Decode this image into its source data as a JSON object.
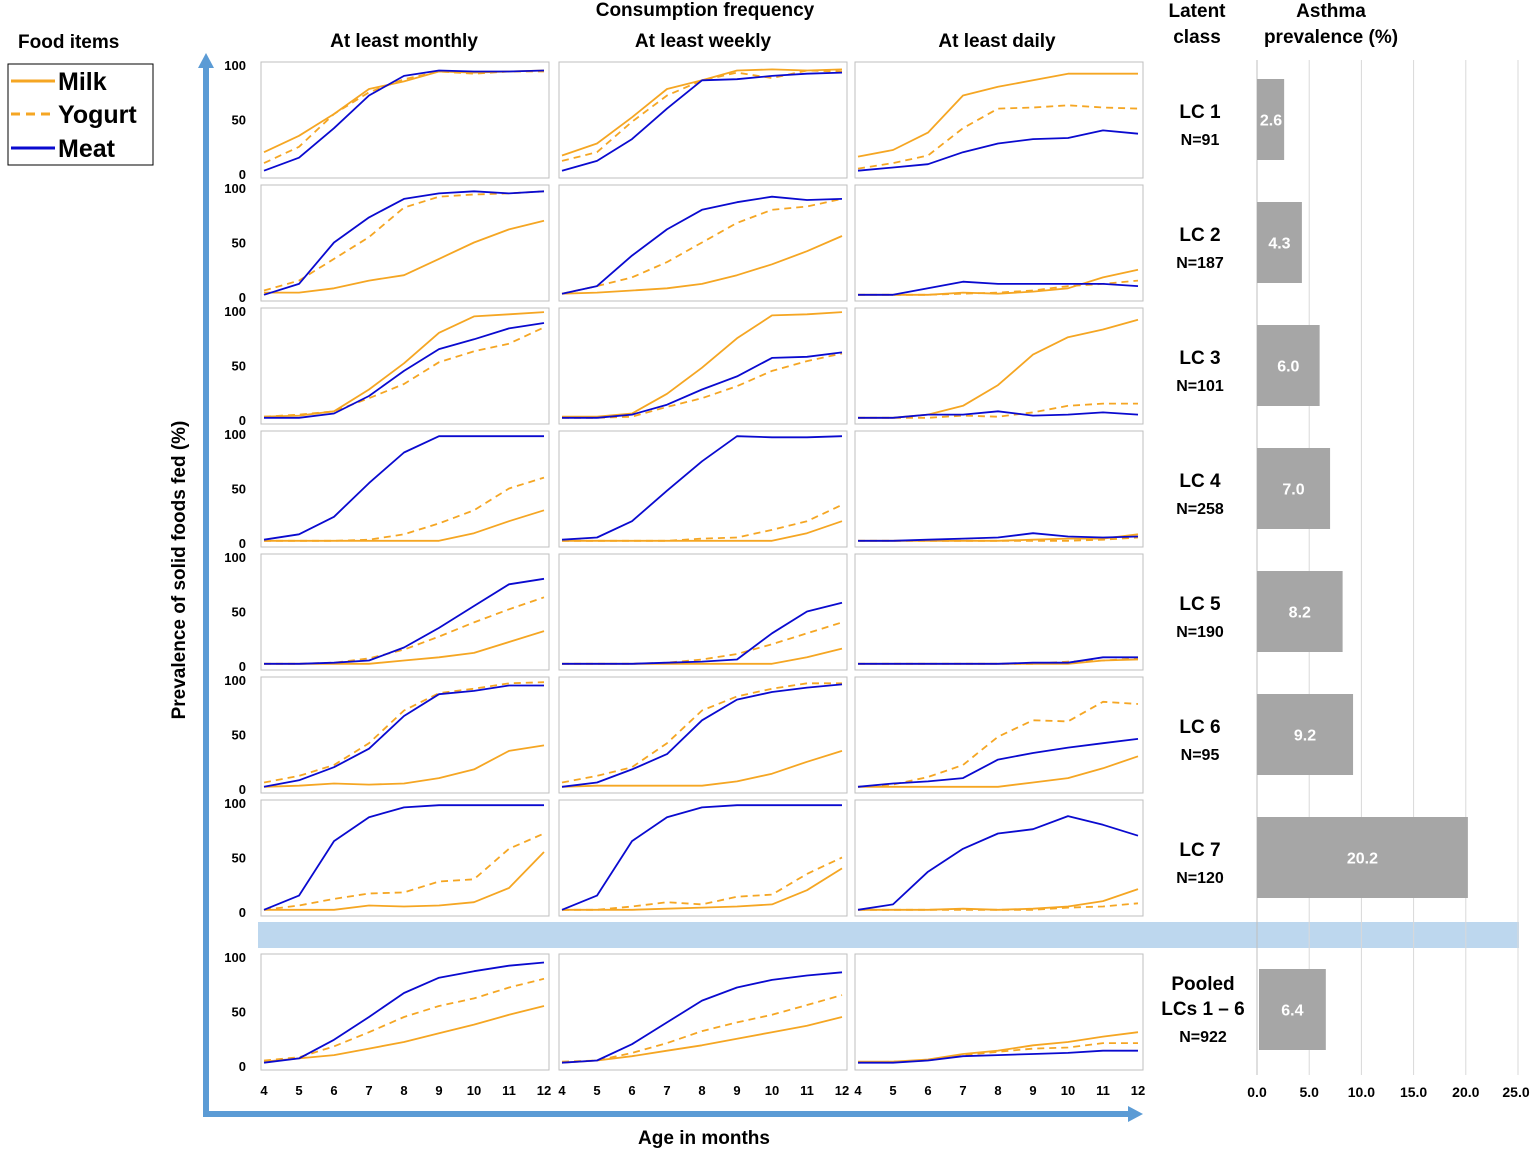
{
  "labels": {
    "food_items_title": "Food items",
    "consumption_frequency": "Consumption frequency",
    "latent_class_line1": "Latent",
    "latent_class_line2": "class",
    "asthma_line1": "Asthma",
    "asthma_line2": "prevalence (%)",
    "y_axis": "Prevalence of solid foods fed (%)",
    "x_axis": "Age in months"
  },
  "legend": [
    {
      "name": "Milk",
      "style": "solid",
      "color": "#F5A623"
    },
    {
      "name": "Yogurt",
      "style": "dashed",
      "color": "#F5A623"
    },
    {
      "name": "Meat",
      "style": "solid",
      "color": "#0A0ACF"
    }
  ],
  "frequencies": [
    "At least monthly",
    "At least weekly",
    "At least daily"
  ],
  "ages": [
    4,
    5,
    6,
    7,
    8,
    9,
    10,
    11,
    12
  ],
  "y_ticks": [
    0,
    50,
    100
  ],
  "asthma_axis": {
    "ticks": [
      "0.0",
      "5.0",
      "10.0",
      "15.0",
      "20.0",
      "25.0"
    ],
    "max": 25
  },
  "colors": {
    "milk": "#F5A623",
    "yogurt": "#F5A623",
    "meat": "#0A0ACF",
    "bar": "#A6A6A6",
    "arrow": "#5B9BD5",
    "separator": "#BDD7EE"
  },
  "chart_data": {
    "type": "line",
    "x": [
      4,
      5,
      6,
      7,
      8,
      9,
      10,
      11,
      12
    ],
    "ylim": [
      0,
      100
    ],
    "xlabel": "Age in months",
    "ylabel": "Prevalence of solid foods fed (%)",
    "classes": [
      {
        "name": "LC 1",
        "n": "N=91",
        "asthma": 2.6,
        "asthma_label": "2.6",
        "panels": [
          {
            "milk": [
              20,
              35,
              55,
              78,
              85,
              94,
              93,
              94,
              95
            ],
            "yogurt": [
              10,
              25,
              55,
              75,
              87,
              94,
              92,
              94,
              94
            ],
            "meat": [
              3,
              15,
              42,
              72,
              90,
              95,
              94,
              94,
              95
            ]
          },
          {
            "milk": [
              17,
              28,
              52,
              78,
              86,
              95,
              96,
              95,
              96
            ],
            "yogurt": [
              12,
              20,
              48,
              72,
              86,
              93,
              88,
              95,
              94
            ],
            "meat": [
              3,
              12,
              32,
              60,
              86,
              87,
              90,
              92,
              93
            ]
          },
          {
            "milk": [
              16,
              22,
              38,
              72,
              80,
              86,
              92,
              92,
              92
            ],
            "yogurt": [
              5,
              10,
              17,
              42,
              60,
              61,
              63,
              61,
              60
            ],
            "meat": [
              3,
              6,
              9,
              20,
              28,
              32,
              33,
              40,
              37
            ]
          }
        ]
      },
      {
        "name": "LC 2",
        "n": "N=187",
        "asthma": 4.3,
        "asthma_label": "4.3",
        "panels": [
          {
            "milk": [
              4,
              4,
              8,
              15,
              20,
              35,
              50,
              62,
              70
            ],
            "yogurt": [
              6,
              15,
              35,
              55,
              82,
              92,
              94,
              95,
              97
            ],
            "meat": [
              2,
              12,
              50,
              73,
              90,
              95,
              97,
              95,
              97
            ]
          },
          {
            "milk": [
              3,
              4,
              6,
              8,
              12,
              20,
              30,
              42,
              56
            ],
            "yogurt": [
              3,
              10,
              18,
              32,
              50,
              68,
              80,
              83,
              90
            ],
            "meat": [
              3,
              10,
              38,
              62,
              80,
              87,
              92,
              89,
              90
            ]
          },
          {
            "milk": [
              2,
              2,
              2,
              4,
              3,
              5,
              8,
              18,
              25
            ],
            "yogurt": [
              2,
              2,
              2,
              3,
              4,
              6,
              10,
              12,
              15
            ],
            "meat": [
              2,
              2,
              8,
              14,
              12,
              12,
              12,
              12,
              10
            ]
          }
        ]
      },
      {
        "name": "LC 3",
        "n": "N=101",
        "asthma": 6.0,
        "asthma_label": "6.0",
        "panels": [
          {
            "milk": [
              3,
              4,
              8,
              28,
              52,
              80,
              95,
              97,
              99
            ],
            "yogurt": [
              3,
              5,
              8,
              20,
              33,
              53,
              63,
              70,
              85
            ],
            "meat": [
              2,
              2,
              6,
              22,
              45,
              65,
              74,
              84,
              89
            ]
          },
          {
            "milk": [
              3,
              3,
              6,
              24,
              48,
              75,
              96,
              97,
              99
            ],
            "yogurt": [
              2,
              2,
              3,
              12,
              20,
              31,
              45,
              54,
              61
            ],
            "meat": [
              2,
              2,
              5,
              14,
              28,
              40,
              57,
              58,
              62
            ]
          },
          {
            "milk": [
              2,
              2,
              5,
              13,
              32,
              60,
              76,
              83,
              92
            ],
            "yogurt": [
              2,
              2,
              2,
              4,
              3,
              7,
              13,
              15,
              15
            ],
            "meat": [
              2,
              2,
              5,
              5,
              8,
              4,
              5,
              7,
              5
            ]
          }
        ]
      },
      {
        "name": "LC 4",
        "n": "N=258",
        "asthma": 7.0,
        "asthma_label": "7.0",
        "panels": [
          {
            "milk": [
              2,
              2,
              2,
              2,
              2,
              2,
              9,
              20,
              30
            ],
            "yogurt": [
              2,
              2,
              2,
              3,
              8,
              18,
              30,
              50,
              60
            ],
            "meat": [
              3,
              8,
              24,
              55,
              83,
              98,
              98,
              98,
              98
            ]
          },
          {
            "milk": [
              2,
              2,
              2,
              2,
              2,
              2,
              2,
              9,
              20
            ],
            "yogurt": [
              2,
              2,
              2,
              2,
              4,
              5,
              12,
              20,
              35
            ],
            "meat": [
              3,
              5,
              20,
              48,
              75,
              98,
              97,
              97,
              98
            ]
          },
          {
            "milk": [
              2,
              2,
              2,
              2,
              2,
              3,
              4,
              4,
              8
            ],
            "yogurt": [
              2,
              2,
              2,
              2,
              2,
              2,
              2,
              3,
              5
            ],
            "meat": [
              2,
              2,
              3,
              4,
              5,
              9,
              6,
              5,
              6
            ]
          }
        ]
      },
      {
        "name": "LC 5",
        "n": "N=190",
        "asthma": 8.2,
        "asthma_label": "8.2",
        "panels": [
          {
            "milk": [
              2,
              2,
              2,
              2,
              5,
              8,
              12,
              22,
              32
            ],
            "yogurt": [
              2,
              2,
              3,
              7,
              15,
              27,
              40,
              52,
              63
            ],
            "meat": [
              2,
              2,
              3,
              5,
              17,
              35,
              55,
              75,
              80
            ]
          },
          {
            "milk": [
              2,
              2,
              2,
              2,
              2,
              2,
              2,
              8,
              16
            ],
            "yogurt": [
              2,
              2,
              2,
              3,
              6,
              11,
              20,
              30,
              40
            ],
            "meat": [
              2,
              2,
              2,
              3,
              4,
              6,
              30,
              50,
              58
            ]
          },
          {
            "milk": [
              2,
              2,
              2,
              2,
              2,
              2,
              2,
              5,
              6
            ],
            "yogurt": [
              2,
              2,
              2,
              2,
              2,
              2,
              4,
              5,
              7
            ],
            "meat": [
              2,
              2,
              2,
              2,
              2,
              3,
              3,
              8,
              8
            ]
          }
        ]
      },
      {
        "name": "LC 6",
        "n": "N=95",
        "asthma": 9.2,
        "asthma_label": "9.2",
        "panels": [
          {
            "milk": [
              2,
              3,
              5,
              4,
              5,
              10,
              18,
              35,
              40
            ],
            "yogurt": [
              6,
              12,
              22,
              42,
              72,
              88,
              92,
              97,
              98
            ],
            "meat": [
              2,
              8,
              20,
              37,
              67,
              87,
              90,
              95,
              95
            ]
          },
          {
            "milk": [
              2,
              3,
              3,
              3,
              3,
              7,
              14,
              25,
              35
            ],
            "yogurt": [
              6,
              12,
              20,
              42,
              72,
              85,
              92,
              97,
              97
            ],
            "meat": [
              2,
              6,
              18,
              32,
              63,
              82,
              89,
              93,
              96
            ]
          },
          {
            "milk": [
              2,
              2,
              2,
              2,
              2,
              6,
              10,
              19,
              30
            ],
            "yogurt": [
              2,
              4,
              11,
              22,
              48,
              63,
              62,
              80,
              78
            ],
            "meat": [
              2,
              5,
              7,
              10,
              27,
              33,
              38,
              42,
              46
            ]
          }
        ]
      },
      {
        "name": "LC 7",
        "n": "N=120",
        "asthma": 20.2,
        "asthma_label": "20.2",
        "panels": [
          {
            "milk": [
              2,
              2,
              2,
              6,
              5,
              6,
              9,
              22,
              55
            ],
            "yogurt": [
              2,
              6,
              12,
              17,
              18,
              28,
              30,
              58,
              72
            ],
            "meat": [
              2,
              15,
              65,
              87,
              96,
              98,
              98,
              98,
              98
            ]
          },
          {
            "milk": [
              2,
              2,
              2,
              3,
              4,
              5,
              7,
              20,
              40
            ],
            "yogurt": [
              2,
              2,
              5,
              9,
              7,
              14,
              16,
              35,
              50
            ],
            "meat": [
              2,
              15,
              65,
              87,
              96,
              98,
              98,
              98,
              98
            ]
          },
          {
            "milk": [
              2,
              2,
              2,
              3,
              2,
              3,
              5,
              10,
              21
            ],
            "yogurt": [
              2,
              2,
              2,
              2,
              2,
              2,
              4,
              5,
              8
            ],
            "meat": [
              2,
              7,
              37,
              58,
              72,
              76,
              88,
              80,
              70
            ]
          }
        ]
      }
    ],
    "pooled": {
      "name_line1": "Pooled",
      "name_line2": "LCs 1 – 6",
      "n": "N=922",
      "asthma": 6.4,
      "asthma_label": "6.4",
      "panels": [
        {
          "milk": [
            4,
            7,
            10,
            16,
            22,
            30,
            38,
            47,
            55
          ],
          "yogurt": [
            5,
            8,
            18,
            31,
            45,
            55,
            62,
            72,
            80
          ],
          "meat": [
            3,
            7,
            24,
            45,
            67,
            81,
            87,
            92,
            95
          ]
        },
        {
          "milk": [
            3,
            5,
            9,
            14,
            19,
            25,
            31,
            37,
            45
          ],
          "yogurt": [
            4,
            5,
            12,
            21,
            32,
            40,
            47,
            56,
            65
          ],
          "meat": [
            3,
            5,
            20,
            40,
            60,
            72,
            79,
            83,
            86
          ]
        },
        {
          "milk": [
            4,
            4,
            6,
            11,
            14,
            19,
            22,
            27,
            31
          ],
          "yogurt": [
            3,
            4,
            5,
            10,
            13,
            16,
            17,
            21,
            21
          ],
          "meat": [
            3,
            3,
            5,
            9,
            10,
            11,
            12,
            14,
            14
          ]
        }
      ]
    }
  }
}
